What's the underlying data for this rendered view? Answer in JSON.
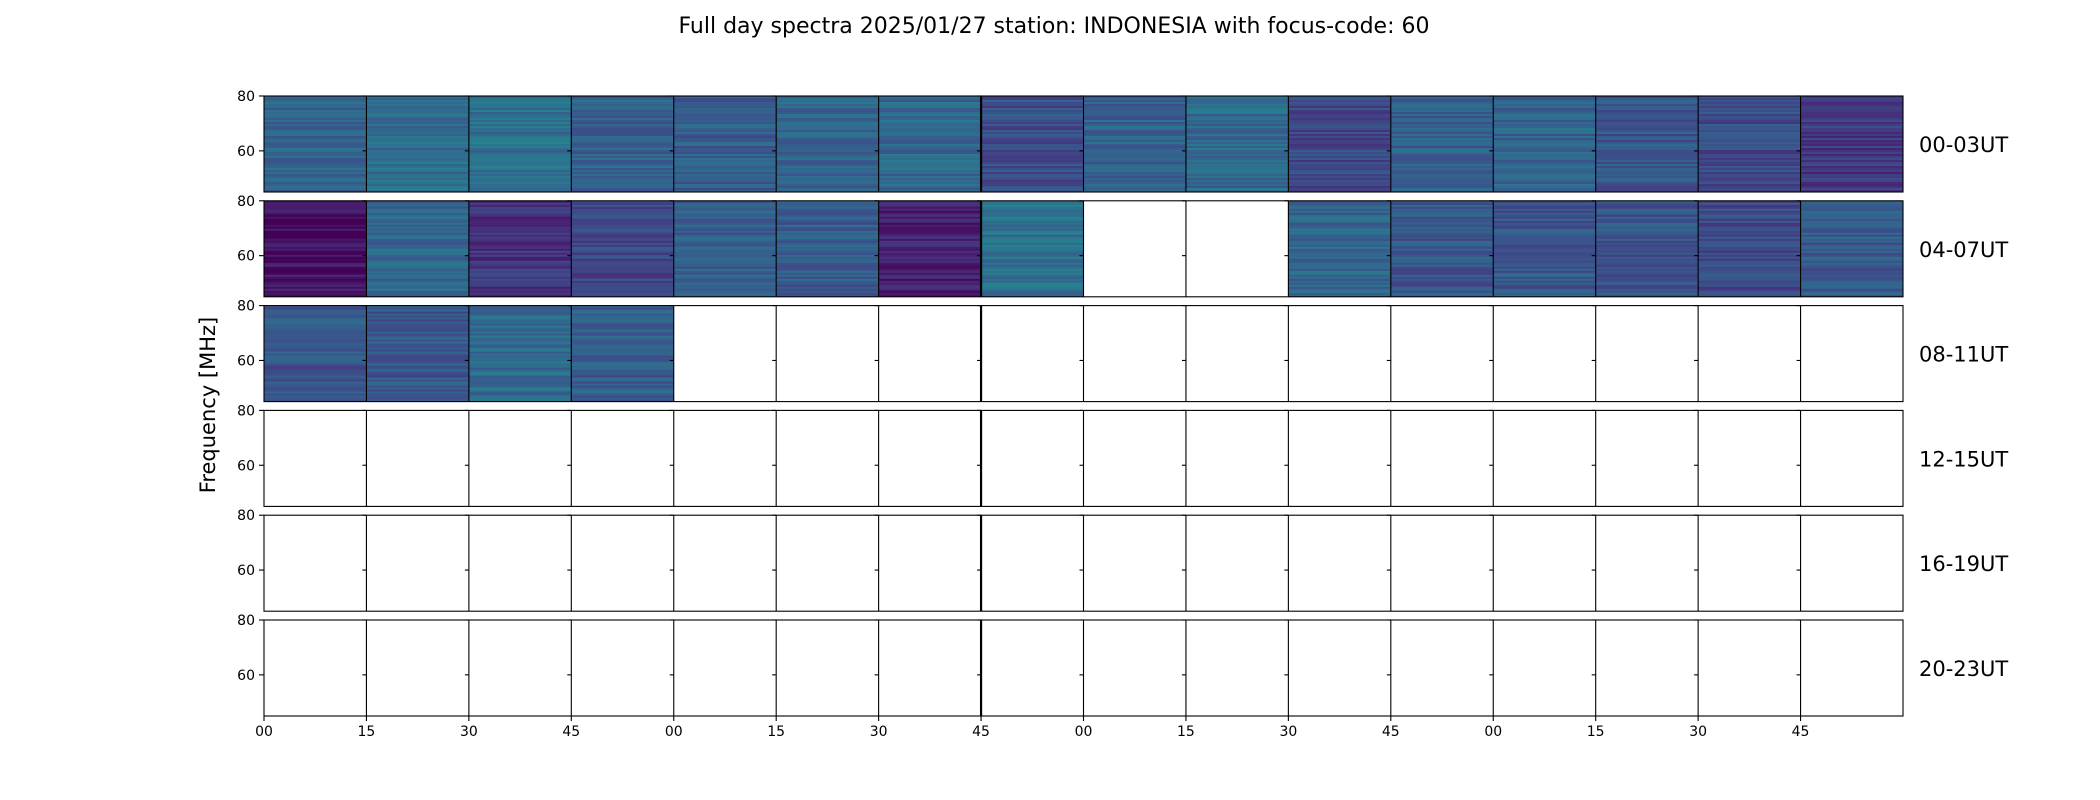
{
  "chart_data": {
    "type": "heatmap",
    "title": "Full day spectra 2025/01/27 station: INDONESIA with focus-code: 60",
    "ylabel": "Frequency [MHz]",
    "xlabel": "",
    "ylim": [
      45,
      80
    ],
    "yticks": [
      "80",
      "60"
    ],
    "xticks": [
      "00",
      "15",
      "30",
      "45",
      "00",
      "15",
      "30",
      "45",
      "00",
      "15",
      "30",
      "45",
      "00",
      "15",
      "30",
      "45"
    ],
    "grid": false,
    "colormap": "viridis",
    "rows": [
      {
        "label": "00-03UT",
        "cells": [
          0.31,
          0.36,
          0.37,
          0.3,
          0.29,
          0.32,
          0.33,
          0.24,
          0.31,
          0.34,
          0.22,
          0.3,
          0.31,
          0.26,
          0.23,
          0.17
        ]
      },
      {
        "label": "04-07UT",
        "cells": [
          0.05,
          0.33,
          0.15,
          0.21,
          0.3,
          0.29,
          0.09,
          0.37,
          null,
          null,
          0.33,
          0.27,
          0.27,
          0.25,
          0.23,
          0.28
        ]
      },
      {
        "label": "08-11UT",
        "cells": [
          0.27,
          0.27,
          0.35,
          0.29,
          null,
          null,
          null,
          null,
          null,
          null,
          null,
          null,
          null,
          null,
          null,
          null
        ]
      },
      {
        "label": "12-15UT",
        "cells": [
          null,
          null,
          null,
          null,
          null,
          null,
          null,
          null,
          null,
          null,
          null,
          null,
          null,
          null,
          null,
          null
        ]
      },
      {
        "label": "16-19UT",
        "cells": [
          null,
          null,
          null,
          null,
          null,
          null,
          null,
          null,
          null,
          null,
          null,
          null,
          null,
          null,
          null,
          null
        ]
      },
      {
        "label": "20-23UT",
        "cells": [
          null,
          null,
          null,
          null,
          null,
          null,
          null,
          null,
          null,
          null,
          null,
          null,
          null,
          null,
          null,
          null
        ]
      }
    ]
  }
}
